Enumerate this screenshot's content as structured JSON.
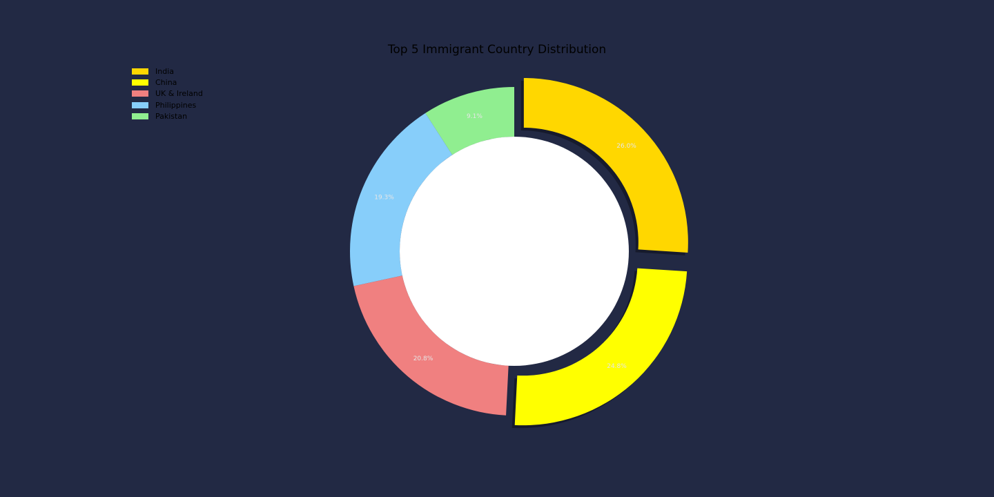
{
  "chart_data": {
    "type": "pie",
    "variant": "donut",
    "title": "Top 5 Immigrant Country Distribution",
    "categories": [
      "India",
      "China",
      "UK & Ireland",
      "Philippines",
      "Pakistan"
    ],
    "values": [
      26.0,
      24.8,
      20.8,
      19.3,
      9.1
    ],
    "value_labels": [
      "26.0%",
      "24.8%",
      "20.8%",
      "19.3%",
      "9.1%"
    ],
    "colors": [
      "#FFD700",
      "#FFFF00",
      "#F08080",
      "#87CEFA",
      "#90EE90"
    ],
    "exploded": [
      "India",
      "China"
    ],
    "center_color": "#FFFFFF",
    "legend_position": "upper-left",
    "background": "#222944"
  }
}
